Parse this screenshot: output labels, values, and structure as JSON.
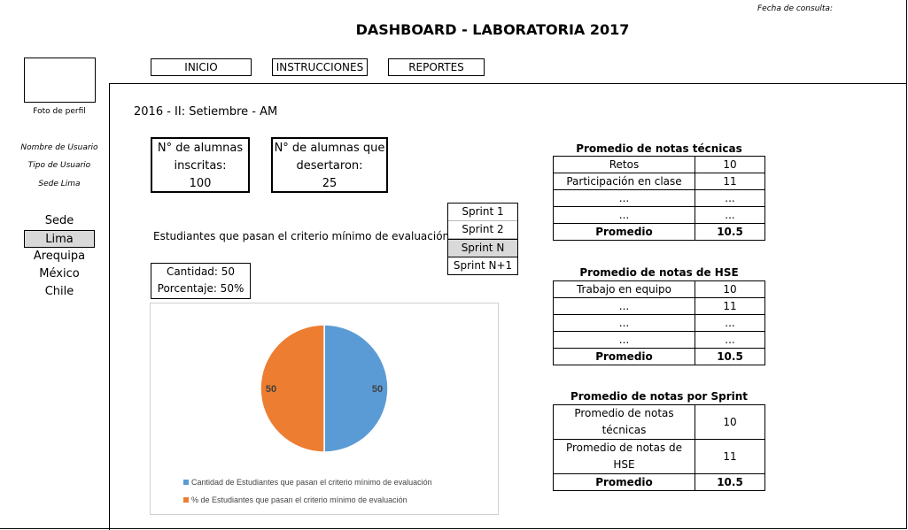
{
  "header": {
    "title": "DASHBOARD - LABORATORIA 2017",
    "fecha_label": "Fecha de consulta:"
  },
  "profile": {
    "photo_label": "Foto de perfil",
    "user_name": "Nombre de Usuario",
    "user_type": "Tipo de Usuario",
    "sede": "Sede Lima"
  },
  "nav": {
    "inicio": "INICIO",
    "instrucciones": "INSTRUCCIONES",
    "reportes": "REPORTES"
  },
  "sedes": {
    "header": "Sede",
    "items": [
      "Lima",
      "Arequipa",
      "México",
      "Chile"
    ],
    "active": "Lima"
  },
  "period": "2016 - II: Setiembre - AM",
  "stats": {
    "inscritas_label1": "N° de alumnas",
    "inscritas_label2": "inscritas:",
    "inscritas_value": "100",
    "desertaron_label1": "N° de alumnas que",
    "desertaron_label2": "desertaron:",
    "desertaron_value": "25"
  },
  "criterio_label": "Estudiantes que pasan el criterio mínimo de evaluación",
  "sprints": [
    "Sprint 1",
    "Sprint 2",
    "Sprint N",
    "Sprint N+1"
  ],
  "cantidad": {
    "cantidad_text": "Cantidad: 50",
    "porcentaje_text": "Porcentaje: 50%"
  },
  "chart_data": {
    "type": "pie",
    "series": [
      {
        "name": "Cantidad de Estudiantes que pasan el criterio mínimo de evaluación",
        "value": 50,
        "color": "#5b9bd5"
      },
      {
        "name": "% de Estudiantes que pasan el criterio mínimo de evaluación",
        "value": 50,
        "color": "#ed7d31"
      }
    ],
    "data_labels": [
      "50",
      "50"
    ],
    "legend_position": "bottom"
  },
  "tecnicas": {
    "title": "Promedio de notas técnicas",
    "rows": [
      {
        "label": "Retos",
        "value": "10"
      },
      {
        "label": "Participación en clase",
        "value": "11"
      },
      {
        "label": "...",
        "value": "..."
      },
      {
        "label": "...",
        "value": "..."
      }
    ],
    "total_label": "Promedio",
    "total_value": "10.5"
  },
  "hse": {
    "title": "Promedio de notas de HSE",
    "rows": [
      {
        "label": "Trabajo en equipo",
        "value": "10"
      },
      {
        "label": "...",
        "value": "11"
      },
      {
        "label": "...",
        "value": "..."
      },
      {
        "label": "...",
        "value": "..."
      }
    ],
    "total_label": "Promedio",
    "total_value": "10.5"
  },
  "sprint_notas": {
    "title": "Promedio de notas por Sprint",
    "row1_label1": "Promedio de notas",
    "row1_label2": "técnicas",
    "row1_value": "10",
    "row2_label1": "Promedio de notas de",
    "row2_label2": "HSE",
    "row2_value": "11",
    "total_label": "Promedio",
    "total_value": "10.5"
  }
}
